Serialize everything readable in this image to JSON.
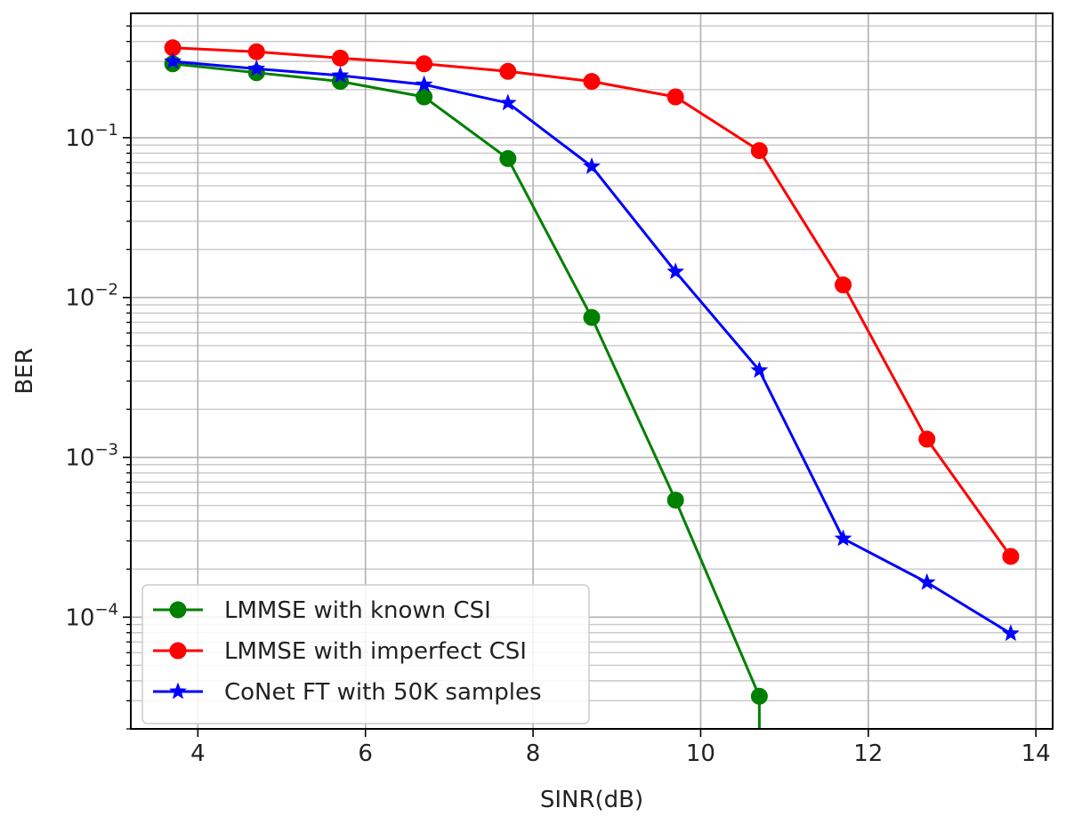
{
  "chart_data": {
    "type": "line",
    "title": "",
    "xlabel": "SINR(dB)",
    "ylabel": "BER",
    "xlim": [
      3.2,
      14.2
    ],
    "ylim": [
      2e-05,
      0.6
    ],
    "yscale": "log",
    "grid": true,
    "minor_grid": true,
    "legend_position": "lower-left",
    "x_ticks": [
      4,
      6,
      8,
      10,
      12,
      14
    ],
    "y_ticks": [
      0.0001,
      0.001,
      0.01,
      0.1
    ],
    "y_tick_labels": [
      {
        "base": "10",
        "exp": "−4"
      },
      {
        "base": "10",
        "exp": "−3"
      },
      {
        "base": "10",
        "exp": "−2"
      },
      {
        "base": "10",
        "exp": "−1"
      }
    ],
    "series": [
      {
        "name": "LMMSE with known CSI",
        "color": "#008000",
        "marker": "circle",
        "x": [
          3.7,
          4.7,
          5.7,
          6.7,
          7.7,
          8.7,
          9.7,
          10.7
        ],
        "y": [
          0.29,
          0.255,
          0.225,
          0.18,
          0.074,
          0.0075,
          0.00054,
          3.2e-05
        ],
        "drop_below_axis": true
      },
      {
        "name": "LMMSE with imperfect CSI",
        "color": "#ff0000",
        "marker": "circle",
        "x": [
          3.7,
          4.7,
          5.7,
          6.7,
          7.7,
          8.7,
          9.7,
          10.7,
          11.7,
          12.7,
          13.7
        ],
        "y": [
          0.365,
          0.345,
          0.315,
          0.29,
          0.26,
          0.225,
          0.18,
          0.083,
          0.012,
          0.0013,
          0.00024
        ]
      },
      {
        "name": "CoNet FT with 50K samples",
        "color": "#0000ff",
        "marker": "star",
        "x": [
          3.7,
          4.7,
          5.7,
          6.7,
          7.7,
          8.7,
          9.7,
          10.7,
          11.7,
          12.7,
          13.7
        ],
        "y": [
          0.3,
          0.27,
          0.245,
          0.215,
          0.165,
          0.066,
          0.0145,
          0.0035,
          0.00031,
          0.000165,
          7.9e-05
        ]
      }
    ]
  }
}
